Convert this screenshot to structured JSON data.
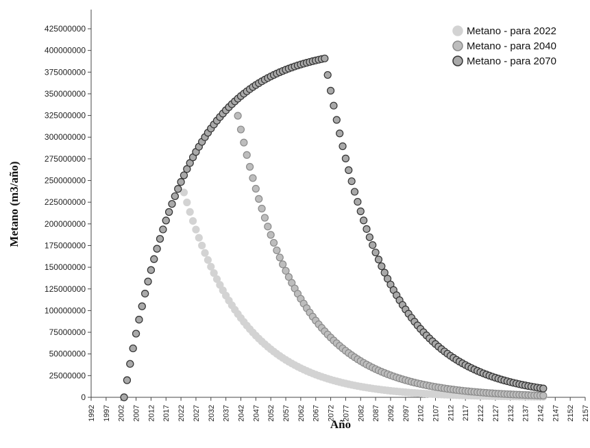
{
  "chart_data": {
    "type": "scatter",
    "xlabel": "Año",
    "ylabel": "Metano (m3/año)",
    "xlim": [
      1992,
      2157
    ],
    "ylim": [
      0,
      425000000
    ],
    "x_ticks": [
      "1992",
      "1997",
      "2002",
      "2007",
      "2012",
      "2017",
      "2022",
      "2027",
      "2032",
      "2037",
      "2042",
      "2047",
      "2052",
      "2057",
      "2062",
      "2067",
      "2072",
      "2077",
      "2082",
      "2087",
      "2092",
      "2097",
      "2102",
      "2107",
      "2112",
      "2117",
      "2122",
      "2127",
      "2132",
      "2137",
      "2142",
      "2147",
      "2152",
      "2157"
    ],
    "y_ticks": [
      "0",
      "25000000",
      "50000000",
      "75000000",
      "100000000",
      "125000000",
      "150000000",
      "175000000",
      "200000000",
      "225000000",
      "250000000",
      "275000000",
      "300000000",
      "325000000",
      "350000000",
      "375000000",
      "400000000",
      "425000000"
    ],
    "legend_position": "top-right",
    "grid": false,
    "model": {
      "k": 0.05,
      "start_year": 2003,
      "end_year": 2143,
      "peak_scale": 405000000
    },
    "series": [
      {
        "name": "Metano - para 2022",
        "close_year": 2022,
        "fill": "#d3d3d3",
        "stroke": "#d3d3d3"
      },
      {
        "name": "Metano - para 2040",
        "close_year": 2040,
        "fill": "#bdbdbd",
        "stroke": "#8a8a8a"
      },
      {
        "name": "Metano - para 2070",
        "close_year": 2070,
        "fill": "#a9a9a9",
        "stroke": "#333333"
      }
    ]
  }
}
